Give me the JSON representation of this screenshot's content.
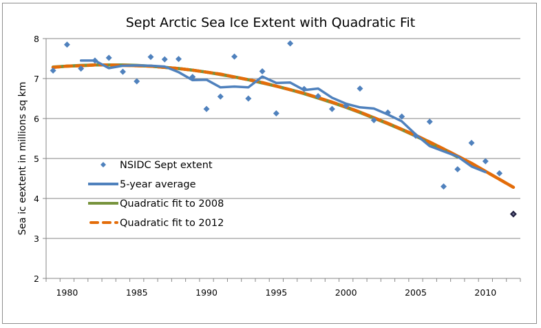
{
  "chart_data": {
    "type": "line",
    "title": "Sept Arctic Sea Ice Extent with Quadratic Fit",
    "xlabel": "",
    "ylabel": "Sea ic eextent in millions sq km",
    "ylim": [
      2,
      8
    ],
    "yticks": [
      2,
      3,
      4,
      5,
      6,
      7,
      8
    ],
    "xticks_labeled": [
      1980,
      1985,
      1990,
      1995,
      2000,
      2005,
      2010
    ],
    "x": [
      1979,
      1980,
      1981,
      1982,
      1983,
      1984,
      1985,
      1986,
      1987,
      1988,
      1989,
      1990,
      1991,
      1992,
      1993,
      1994,
      1995,
      1996,
      1997,
      1998,
      1999,
      2000,
      2001,
      2002,
      2003,
      2004,
      2005,
      2006,
      2007,
      2008,
      2009,
      2010,
      2011,
      2012
    ],
    "grid": "horizontal",
    "legend_position": "center-left",
    "series": [
      {
        "name": "NSIDC Sept extent",
        "style": "markers",
        "color": "#4f81bd",
        "values": [
          7.2,
          7.85,
          7.25,
          7.45,
          7.52,
          7.17,
          6.93,
          7.54,
          7.48,
          7.49,
          7.04,
          6.24,
          6.55,
          7.55,
          6.5,
          7.18,
          6.13,
          7.88,
          6.74,
          6.56,
          6.24,
          6.32,
          6.75,
          5.96,
          6.15,
          6.05,
          5.57,
          5.92,
          4.3,
          4.73,
          5.39,
          4.93,
          4.63,
          null
        ]
      },
      {
        "name": "5-year average",
        "style": "line",
        "color": "#4f81bd",
        "values": [
          null,
          null,
          7.45,
          7.45,
          7.26,
          7.32,
          7.33,
          7.32,
          7.3,
          7.16,
          6.96,
          6.97,
          6.78,
          6.8,
          6.78,
          7.05,
          6.89,
          6.9,
          6.71,
          6.75,
          6.52,
          6.37,
          6.28,
          6.25,
          6.1,
          5.93,
          5.6,
          5.31,
          5.18,
          5.05,
          4.8,
          4.66,
          null,
          null
        ]
      },
      {
        "name": "Quadratic fit to 2008",
        "style": "line",
        "color": "#77933c",
        "values": [
          7.29,
          7.31,
          7.33,
          7.34,
          7.34,
          7.34,
          7.33,
          7.31,
          7.28,
          7.25,
          7.21,
          7.16,
          7.1,
          7.04,
          6.97,
          6.89,
          6.81,
          6.72,
          6.62,
          6.51,
          6.4,
          6.28,
          6.15,
          6.01,
          5.87,
          5.72,
          5.56,
          5.39,
          5.22,
          5.04,
          null,
          null,
          null,
          null
        ]
      },
      {
        "name": "Quadratic fit to 2012",
        "style": "dashed",
        "color": "#e36c09",
        "values": [
          7.28,
          7.31,
          7.32,
          7.34,
          7.34,
          7.33,
          7.32,
          7.31,
          7.28,
          7.25,
          7.21,
          7.16,
          7.11,
          7.04,
          6.97,
          6.9,
          6.81,
          6.72,
          6.63,
          6.52,
          6.41,
          6.29,
          6.16,
          6.02,
          5.88,
          5.73,
          5.58,
          5.41,
          5.24,
          5.06,
          4.88,
          4.68,
          4.48,
          4.28
        ]
      }
    ],
    "highlight_point": {
      "x": 2012,
      "y": 3.61,
      "color": "#1f1f3f"
    }
  }
}
